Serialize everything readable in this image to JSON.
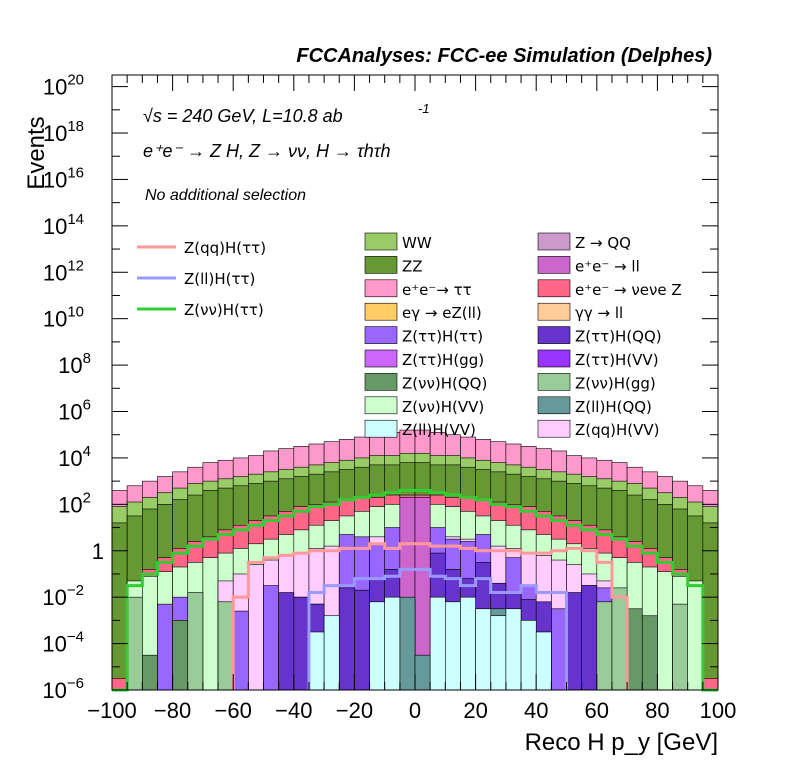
{
  "chart_data": {
    "type": "bar",
    "title": "FCCAnalyses: FCC-ee Simulation (Delphes)",
    "xlabel": "Reco H p_y [GeV]",
    "ylabel": "Events",
    "xlim": [
      -100,
      100
    ],
    "ylim_log10": [
      -6,
      20.5
    ],
    "log_y": true,
    "x_ticks": [
      "−100",
      "−80",
      "−60",
      "−40",
      "−20",
      "0",
      "20",
      "40",
      "60",
      "80",
      "100"
    ],
    "annotations": {
      "energy": "√s = 240 GeV, L=10.8 ab",
      "energy_sup": "-1",
      "process": "e⁺e⁻ → Z H, Z → νν, H → τhτh",
      "selection": "No additional selection"
    },
    "bin_width": 5,
    "bin_centers": [
      -97.5,
      -92.5,
      -87.5,
      -82.5,
      -77.5,
      -72.5,
      -67.5,
      -62.5,
      -57.5,
      -52.5,
      -47.5,
      -42.5,
      -37.5,
      -32.5,
      -27.5,
      -22.5,
      -17.5,
      -12.5,
      -7.5,
      -2.5,
      2.5,
      7.5,
      12.5,
      17.5,
      22.5,
      27.5,
      32.5,
      37.5,
      42.5,
      47.5,
      52.5,
      57.5,
      62.5,
      67.5,
      72.5,
      77.5,
      82.5,
      87.5,
      92.5,
      97.5
    ],
    "stack_series": [
      {
        "name": "Z(qq)H(VV)",
        "color": "#ffccff",
        "log10_cumulative": [
          null,
          null,
          null,
          null,
          null,
          null,
          null,
          -1.3,
          -1.0,
          -0.6,
          -0.4,
          -0.2,
          -0.1,
          0.1,
          0.2,
          0.3,
          0.5,
          0.6,
          0.7,
          0.8,
          0.8,
          0.7,
          0.6,
          0.5,
          0.3,
          0.2,
          0.1,
          -0.1,
          -0.2,
          -0.4,
          -0.6,
          -1.0,
          -1.3,
          null,
          null,
          null,
          null,
          null,
          null,
          null
        ]
      },
      {
        "name": "Z(vv)H(VV)",
        "color": "#ccffcc",
        "log10_cumulative": [
          null,
          -1.3,
          -1.1,
          -0.9,
          -0.7,
          -0.5,
          -0.3,
          -0.1,
          0.1,
          0.3,
          0.5,
          0.7,
          0.9,
          1.1,
          1.3,
          1.5,
          1.7,
          1.9,
          2.0,
          2.1,
          2.1,
          2.0,
          1.9,
          1.7,
          1.5,
          1.3,
          1.1,
          0.9,
          0.7,
          0.5,
          0.3,
          0.1,
          -0.1,
          -0.3,
          -0.5,
          -0.7,
          -0.9,
          -1.1,
          -1.3,
          null
        ]
      },
      {
        "name": "e⁺e⁻ → νeνe Z",
        "color": "#ff6688",
        "log10_cumulative": [
          -5.5,
          -1.5,
          -0.8,
          -0.3,
          0.1,
          0.4,
          0.6,
          0.9,
          1.1,
          1.3,
          1.5,
          1.7,
          1.9,
          2.0,
          2.1,
          2.2,
          2.3,
          2.3,
          2.4,
          2.4,
          2.4,
          2.4,
          2.3,
          2.3,
          2.2,
          2.1,
          2.0,
          1.9,
          1.7,
          1.5,
          1.3,
          1.1,
          0.9,
          0.6,
          0.4,
          0.1,
          -0.3,
          -0.8,
          -1.5,
          -5.5
        ]
      },
      {
        "name": "ZZ",
        "color": "#669933",
        "log10_cumulative": [
          1.2,
          1.5,
          1.8,
          2.0,
          2.2,
          2.4,
          2.6,
          2.7,
          2.8,
          2.9,
          3.0,
          3.1,
          3.2,
          3.3,
          3.4,
          3.5,
          3.6,
          3.7,
          3.7,
          3.8,
          3.8,
          3.7,
          3.7,
          3.6,
          3.5,
          3.4,
          3.3,
          3.2,
          3.1,
          3.0,
          2.9,
          2.8,
          2.7,
          2.6,
          2.4,
          2.2,
          2.0,
          1.8,
          1.5,
          1.2
        ]
      },
      {
        "name": "WW",
        "color": "#99cc66",
        "log10_cumulative": [
          1.9,
          2.1,
          2.3,
          2.5,
          2.7,
          2.9,
          3.0,
          3.1,
          3.2,
          3.3,
          3.4,
          3.5,
          3.6,
          3.7,
          3.8,
          3.9,
          4.0,
          4.1,
          4.1,
          4.2,
          4.2,
          4.1,
          4.1,
          4.0,
          3.9,
          3.8,
          3.7,
          3.6,
          3.5,
          3.4,
          3.3,
          3.2,
          3.1,
          3.0,
          2.9,
          2.7,
          2.5,
          2.3,
          2.1,
          1.9
        ]
      },
      {
        "name": "e⁺e⁻→ ττ",
        "color": "#ff99cc",
        "log10_cumulative": [
          2.6,
          2.8,
          3.0,
          3.2,
          3.4,
          3.6,
          3.8,
          3.9,
          4.0,
          4.1,
          4.3,
          4.4,
          4.5,
          4.6,
          4.7,
          4.8,
          4.9,
          5.0,
          5.1,
          5.2,
          5.2,
          5.1,
          5.0,
          4.9,
          4.8,
          4.7,
          4.6,
          4.5,
          4.4,
          4.3,
          4.1,
          4.0,
          3.9,
          3.8,
          3.6,
          3.4,
          3.2,
          3.0,
          2.8,
          2.6
        ]
      }
    ],
    "overlay_series": [
      {
        "name": "Z(qq)H(ττ)",
        "color": "#ff9999",
        "log10_values": [
          null,
          null,
          null,
          null,
          null,
          null,
          null,
          null,
          -2.0,
          -0.5,
          -0.3,
          -0.2,
          -0.1,
          0.0,
          0.0,
          0.1,
          0.1,
          0.3,
          0.1,
          0.3,
          0.3,
          0.2,
          0.2,
          0.1,
          0.0,
          0.0,
          0.0,
          -0.1,
          -0.1,
          0.0,
          0.1,
          0.0,
          -0.5,
          -2.0,
          null,
          null,
          null,
          null,
          null,
          null
        ]
      },
      {
        "name": "Z(ll)H(ττ)",
        "color": "#9999ff",
        "log10_values": [
          null,
          null,
          null,
          null,
          null,
          null,
          null,
          null,
          null,
          null,
          null,
          null,
          null,
          -1.8,
          -1.5,
          -1.5,
          -1.2,
          -1.2,
          -1.1,
          -0.8,
          -0.8,
          -1.1,
          -1.2,
          -1.5,
          -1.2,
          -1.8,
          -1.8,
          -1.5,
          -1.8,
          -1.8,
          null,
          null,
          null,
          null,
          null,
          null,
          null,
          null,
          null,
          null
        ]
      },
      {
        "name": "Z(νν)H(ττ)",
        "color": "#33cc33",
        "log10_values": [
          -6.3,
          -1.5,
          -1.0,
          -0.5,
          -0.1,
          0.2,
          0.5,
          0.7,
          0.9,
          1.1,
          1.3,
          1.5,
          1.7,
          1.9,
          2.0,
          2.2,
          2.3,
          2.4,
          2.5,
          2.6,
          2.6,
          2.5,
          2.4,
          2.3,
          2.2,
          2.0,
          1.9,
          1.7,
          1.5,
          1.3,
          1.1,
          0.9,
          0.7,
          0.5,
          0.2,
          -0.1,
          -0.5,
          -1.0,
          -1.5,
          -6.3
        ]
      }
    ],
    "legend_overlay": [
      {
        "name": "Z(qq)H(ττ)",
        "color": "#ff9999"
      },
      {
        "name": "Z(ll)H(ττ)",
        "color": "#9999ff"
      },
      {
        "name": "Z(νν)H(ττ)",
        "color": "#33cc33"
      }
    ],
    "legend_stack": [
      {
        "name": "WW",
        "color": "#99cc66"
      },
      {
        "name": "Z → QQ",
        "color": "#cc99cc"
      },
      {
        "name": "ZZ",
        "color": "#669933"
      },
      {
        "name": "e⁺e⁻ → ll",
        "color": "#cc66cc"
      },
      {
        "name": "e⁺e⁻→ ττ",
        "color": "#ff99cc"
      },
      {
        "name": "e⁺e⁻ → νeνe Z",
        "color": "#ff6688"
      },
      {
        "name": "eγ → eZ(ll)",
        "color": "#ffcc66"
      },
      {
        "name": "γγ → ll",
        "color": "#ffcc99"
      },
      {
        "name": "Z(ττ)H(ττ)",
        "color": "#9966ff"
      },
      {
        "name": "Z(ττ)H(QQ)",
        "color": "#6633cc"
      },
      {
        "name": "Z(ττ)H(gg)",
        "color": "#cc66ff"
      },
      {
        "name": "Z(ττ)H(VV)",
        "color": "#9933ff"
      },
      {
        "name": "Z(νν)H(QQ)",
        "color": "#669966"
      },
      {
        "name": "Z(νν)H(gg)",
        "color": "#99cc99"
      },
      {
        "name": "Z(νν)H(VV)",
        "color": "#ccffcc"
      },
      {
        "name": "Z(ll)H(QQ)",
        "color": "#669999"
      },
      {
        "name": "Z(ll)H(VV)",
        "color": "#ccffff"
      },
      {
        "name": "Z(qq)H(VV)",
        "color": "#ffccff"
      }
    ],
    "sparse_bars": [
      {
        "name": "Z(ττ)H(ττ)",
        "color": "#9966ff",
        "bins": [
          [
            -82.5,
            -2.3
          ],
          [
            -77.5,
            -2.0
          ],
          [
            -57.5,
            -2.6
          ],
          [
            -47.5,
            -1.5
          ],
          [
            -42.5,
            -3.5
          ],
          [
            -37.5,
            -2.0
          ],
          [
            -32.5,
            -2.3
          ],
          [
            -22.5,
            0.7
          ],
          [
            -17.5,
            0.6
          ],
          [
            -12.5,
            0.3
          ],
          [
            -7.5,
            1.0
          ],
          [
            -2.5,
            1.2
          ],
          [
            2.5,
            1.1
          ],
          [
            7.5,
            1.0
          ],
          [
            12.5,
            0.5
          ],
          [
            17.5,
            0.4
          ],
          [
            22.5,
            0.7
          ],
          [
            32.5,
            -0.3
          ],
          [
            37.5,
            -1.5
          ],
          [
            47.5,
            -2.5
          ],
          [
            57.5,
            -1.5
          ],
          [
            62.5,
            -1.6
          ]
        ]
      },
      {
        "name": "Z(ττ)H(QQ)",
        "color": "#6633cc",
        "bins": [
          [
            -42.5,
            -1.8
          ],
          [
            -37.5,
            -2.0
          ],
          [
            -32.5,
            -2.3
          ],
          [
            -22.5,
            -1.6
          ],
          [
            -17.5,
            -1.7
          ],
          [
            -12.5,
            -1.2
          ],
          [
            -7.5,
            -0.8
          ],
          [
            -2.5,
            -0.1
          ],
          [
            2.5,
            0.3
          ],
          [
            7.5,
            -0.1
          ],
          [
            12.5,
            -0.8
          ],
          [
            17.5,
            -1.2
          ],
          [
            22.5,
            -0.5
          ],
          [
            27.5,
            -1.4
          ],
          [
            32.5,
            -1.8
          ],
          [
            37.5,
            -2.1
          ],
          [
            42.5,
            -2.2
          ],
          [
            52.5,
            -1.8
          ],
          [
            57.5,
            -1.5
          ]
        ]
      },
      {
        "name": "eγ → eZ(ll)",
        "color": "#ffcc66",
        "bins": [
          [
            -2.5,
            1.5
          ],
          [
            2.5,
            1.5
          ]
        ]
      },
      {
        "name": "e⁺e⁻ → ll",
        "color": "#cc66cc",
        "bins": [
          [
            -2.5,
            2.3
          ],
          [
            2.5,
            2.3
          ]
        ]
      },
      {
        "name": "Z(νν)H(QQ)",
        "color": "#669966",
        "bins": [
          [
            -87.5,
            -4.5
          ],
          [
            -77.5,
            -3.0
          ],
          [
            -12.5,
            -3.0
          ],
          [
            -2.5,
            -2.2
          ],
          [
            42.5,
            -3.5
          ],
          [
            72.5,
            -2.5
          ],
          [
            77.5,
            -2.8
          ]
        ]
      },
      {
        "name": "Z(ll)H(QQ)",
        "color": "#669999",
        "bins": [
          [
            -2.5,
            -2.0
          ],
          [
            2.5,
            -4.5
          ],
          [
            17.5,
            -3.0
          ],
          [
            27.5,
            -2.5
          ]
        ]
      },
      {
        "name": "Z(ll)H(VV)",
        "color": "#ccffff",
        "bins": [
          [
            -32.5,
            -3.5
          ],
          [
            -27.5,
            -2.8
          ],
          [
            -12.5,
            -2.2
          ],
          [
            -7.5,
            -2.0
          ],
          [
            7.5,
            -2.0
          ],
          [
            12.5,
            -2.2
          ],
          [
            17.5,
            -2.0
          ],
          [
            22.5,
            -2.5
          ],
          [
            27.5,
            -2.8
          ],
          [
            32.5,
            -2.5
          ],
          [
            37.5,
            -3.0
          ],
          [
            42.5,
            -3.5
          ]
        ]
      },
      {
        "name": "Z(νν)H(gg)",
        "color": "#99cc99",
        "bins": [
          [
            -92.5,
            -2.0
          ],
          [
            -72.5,
            -1.8
          ],
          [
            -62.5,
            -2.2
          ],
          [
            62.5,
            -2.2
          ],
          [
            67.5,
            -1.6
          ],
          [
            87.5,
            -2.3
          ]
        ]
      }
    ]
  }
}
